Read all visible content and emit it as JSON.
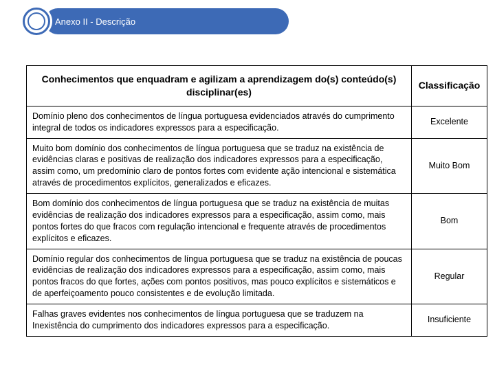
{
  "header": {
    "title": "Anexo II - Descrição"
  },
  "table": {
    "headers": {
      "description": "Conhecimentos que enquadram e agilizam a aprendizagem do(s) conteúdo(s) disciplinar(es)",
      "classification": "Classificação"
    },
    "rows": [
      {
        "description": "Domínio pleno dos conhecimentos de língua portuguesa evidenciados através do cumprimento integral de todos os indicadores expressos para a especificação.",
        "classification": "Excelente"
      },
      {
        "description": "Muito bom domínio dos conhecimentos de língua portuguesa que se traduz na existência de evidências claras e positivas de realização dos indicadores expressos para a especificação, assim como, um predomínio claro de pontos fortes com evidente ação intencional e sistemática através de procedimentos explícitos, generalizados e eficazes.",
        "classification": "Muito Bom"
      },
      {
        "description": "Bom domínio dos conhecimentos de língua portuguesa que se traduz na existência de muitas evidências de realização dos indicadores expressos para a especificação, assim como, mais pontos fortes do que fracos com regulação intencional e frequente através de procedimentos explícitos e eficazes.",
        "classification": "Bom"
      },
      {
        "description": "Domínio regular dos conhecimentos de língua portuguesa que se traduz na existência de poucas evidências de realização dos indicadores expressos para a especificação, assim como, mais pontos fracos do que fortes, ações com pontos positivos, mas pouco explícitos e sistemáticos e de aperfeiçoamento pouco consistentes e de evolução limitada.",
        "classification": "Regular"
      },
      {
        "description": "Falhas graves evidentes nos conhecimentos de língua portuguesa que se traduzem na Inexistência do cumprimento dos indicadores expressos para a especificação.",
        "classification": "Insuficiente"
      }
    ]
  }
}
